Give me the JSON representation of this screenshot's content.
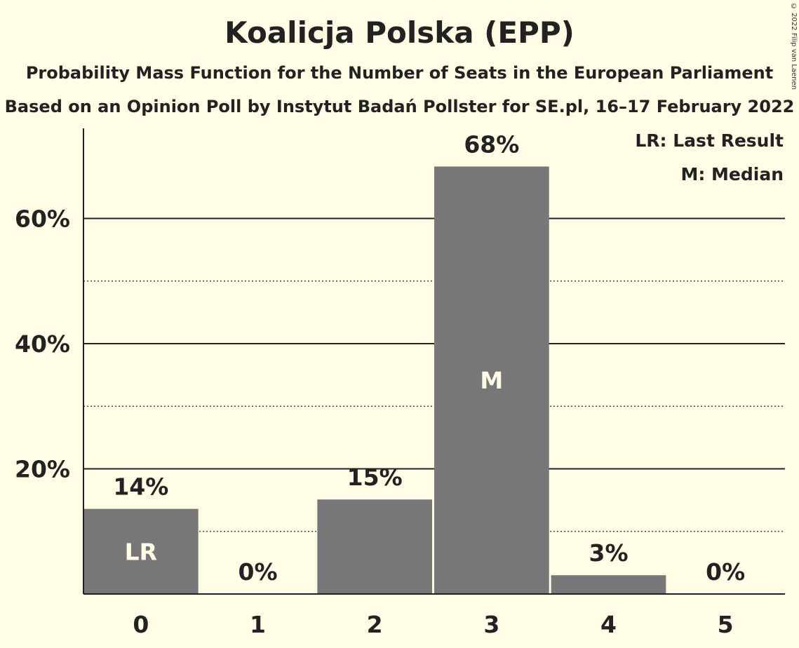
{
  "header": {
    "title": "Koalicja Polska (EPP)",
    "subtitle1": "Probability Mass Function for the Number of Seats in the European Parliament",
    "subtitle2": "Based on an Opinion Poll by Instytut Badań Pollster for SE.pl, 16–17 February 2022",
    "copyright": "© 2022 Filip van Laenen"
  },
  "legend": {
    "last_result": "LR: Last Result",
    "median": "M: Median"
  },
  "colors": {
    "background": "#FFFDE6",
    "bar": "#777777",
    "axis": "#222222"
  },
  "chart_data": {
    "type": "bar",
    "title": "Koalicja Polska (EPP)",
    "xlabel": "",
    "ylabel": "",
    "categories": [
      "0",
      "1",
      "2",
      "3",
      "4",
      "5"
    ],
    "values": [
      13.6,
      0,
      15.1,
      68.3,
      3.0,
      0
    ],
    "value_labels": [
      "14%",
      "0%",
      "15%",
      "68%",
      "3%",
      "0%"
    ],
    "ylim": [
      0,
      74.4
    ],
    "yticks": [
      20,
      40,
      60
    ],
    "ytick_labels": [
      "20%",
      "40%",
      "60%"
    ],
    "minor_gridlines": [
      10,
      30,
      50
    ],
    "grid": true,
    "legend_position": "top-right",
    "markers": [
      {
        "category": "0",
        "label": "LR"
      },
      {
        "category": "3",
        "label": "M"
      }
    ]
  }
}
